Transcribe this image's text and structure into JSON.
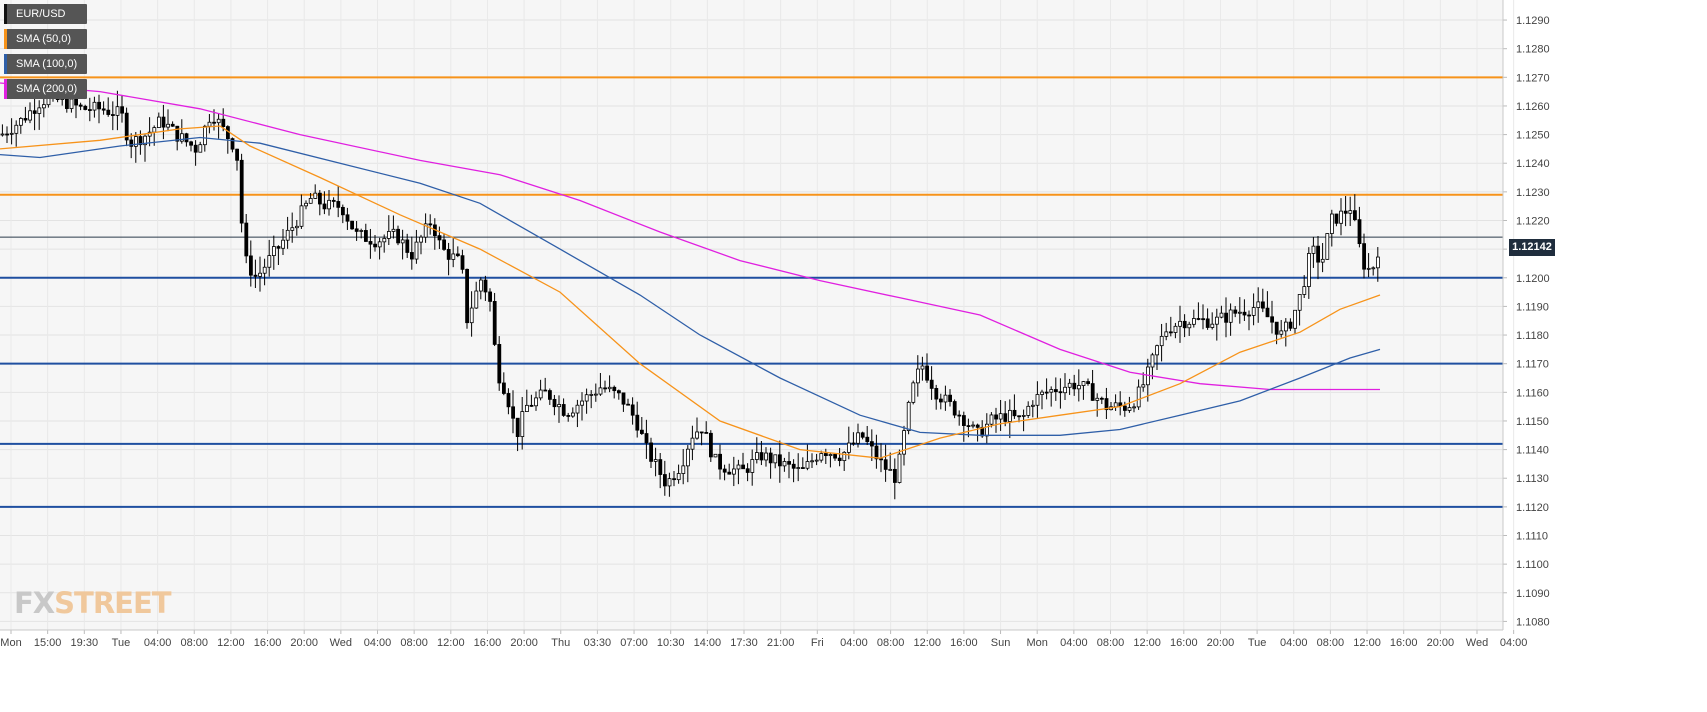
{
  "legend": [
    {
      "label": "EUR/USD",
      "color": "#111111"
    },
    {
      "label": "SMA (50,0)",
      "color": "#f7931a"
    },
    {
      "label": "SMA (100,0)",
      "color": "#2f5fa8"
    },
    {
      "label": "SMA (200,0)",
      "color": "#e020e0"
    }
  ],
  "logo": {
    "fx": "FX",
    "rest": "STREET"
  },
  "current_price": "1.12142",
  "chart_data": {
    "type": "candlestick",
    "symbol": "EUR/USD",
    "ylim": [
      1.1077,
      1.1297
    ],
    "yticks": [
      "1.1080",
      "1.1090",
      "1.1100",
      "1.1110",
      "1.1120",
      "1.1130",
      "1.1140",
      "1.1150",
      "1.1160",
      "1.1170",
      "1.1180",
      "1.1190",
      "1.1200",
      "1.1210",
      "1.1220",
      "1.1230",
      "1.1240",
      "1.1250",
      "1.1260",
      "1.1270",
      "1.1280",
      "1.1290"
    ],
    "xticks": [
      "Mon",
      "15:00",
      "19:30",
      "Tue",
      "04:00",
      "08:00",
      "12:00",
      "16:00",
      "20:00",
      "Wed",
      "04:00",
      "08:00",
      "12:00",
      "16:00",
      "20:00",
      "Thu",
      "03:30",
      "07:00",
      "10:30",
      "14:00",
      "17:30",
      "21:00",
      "Fri",
      "04:00",
      "08:00",
      "12:00",
      "16:00",
      "Sun",
      "Mon",
      "04:00",
      "08:00",
      "12:00",
      "16:00",
      "20:00",
      "Tue",
      "04:00",
      "08:00",
      "12:00",
      "16:00",
      "20:00",
      "Wed",
      "04:00"
    ],
    "horizontal_levels": [
      {
        "value": 1.127,
        "color": "#f7931a"
      },
      {
        "value": 1.1229,
        "color": "#f7931a"
      },
      {
        "value": 1.12,
        "color": "#1f4fa0"
      },
      {
        "value": 1.117,
        "color": "#1f4fa0"
      },
      {
        "value": 1.1142,
        "color": "#1f4fa0"
      },
      {
        "value": 1.112,
        "color": "#1f4fa0"
      }
    ],
    "current_price_level": 1.12142,
    "price_path": [
      [
        0,
        1.125
      ],
      [
        20,
        1.1255
      ],
      [
        40,
        1.1262
      ],
      [
        60,
        1.1262
      ],
      [
        80,
        1.1259
      ],
      [
        100,
        1.1259
      ],
      [
        120,
        1.1257
      ],
      [
        128,
        1.1247
      ],
      [
        145,
        1.125
      ],
      [
        160,
        1.1255
      ],
      [
        175,
        1.125
      ],
      [
        195,
        1.1245
      ],
      [
        210,
        1.1258
      ],
      [
        225,
        1.125
      ],
      [
        235,
        1.1245
      ],
      [
        240,
        1.122
      ],
      [
        245,
        1.1205
      ],
      [
        255,
        1.12
      ],
      [
        265,
        1.1205
      ],
      [
        280,
        1.1212
      ],
      [
        295,
        1.122
      ],
      [
        310,
        1.1228
      ],
      [
        325,
        1.1225
      ],
      [
        340,
        1.1225
      ],
      [
        355,
        1.1215
      ],
      [
        375,
        1.1213
      ],
      [
        395,
        1.1215
      ],
      [
        410,
        1.1208
      ],
      [
        430,
        1.122
      ],
      [
        440,
        1.121
      ],
      [
        460,
        1.1205
      ],
      [
        465,
        1.1185
      ],
      [
        480,
        1.12
      ],
      [
        490,
        1.119
      ],
      [
        495,
        1.1168
      ],
      [
        505,
        1.116
      ],
      [
        515,
        1.1145
      ],
      [
        525,
        1.1155
      ],
      [
        545,
        1.116
      ],
      [
        565,
        1.1153
      ],
      [
        580,
        1.1157
      ],
      [
        600,
        1.1162
      ],
      [
        620,
        1.1158
      ],
      [
        635,
        1.115
      ],
      [
        645,
        1.114
      ],
      [
        665,
        1.1128
      ],
      [
        680,
        1.1135
      ],
      [
        690,
        1.1145
      ],
      [
        700,
        1.1148
      ],
      [
        715,
        1.1135
      ],
      [
        740,
        1.1132
      ],
      [
        760,
        1.1138
      ],
      [
        780,
        1.1135
      ],
      [
        800,
        1.1132
      ],
      [
        820,
        1.114
      ],
      [
        840,
        1.1138
      ],
      [
        860,
        1.1145
      ],
      [
        880,
        1.1135
      ],
      [
        895,
        1.113
      ],
      [
        900,
        1.114
      ],
      [
        910,
        1.116
      ],
      [
        920,
        1.117
      ],
      [
        935,
        1.116
      ],
      [
        950,
        1.1155
      ],
      [
        965,
        1.115
      ],
      [
        975,
        1.1145
      ],
      [
        990,
        1.115
      ],
      [
        1005,
        1.1152
      ],
      [
        1020,
        1.115
      ],
      [
        1030,
        1.1157
      ],
      [
        1045,
        1.116
      ],
      [
        1060,
        1.1162
      ],
      [
        1075,
        1.1163
      ],
      [
        1090,
        1.116
      ],
      [
        1105,
        1.1155
      ],
      [
        1115,
        1.1155
      ],
      [
        1125,
        1.1155
      ],
      [
        1135,
        1.1158
      ],
      [
        1145,
        1.1165
      ],
      [
        1155,
        1.1175
      ],
      [
        1165,
        1.1182
      ],
      [
        1180,
        1.1185
      ],
      [
        1195,
        1.1185
      ],
      [
        1215,
        1.1185
      ],
      [
        1235,
        1.1188
      ],
      [
        1255,
        1.119
      ],
      [
        1270,
        1.1185
      ],
      [
        1280,
        1.118
      ],
      [
        1290,
        1.1185
      ],
      [
        1300,
        1.1195
      ],
      [
        1310,
        1.121
      ],
      [
        1320,
        1.1205
      ],
      [
        1330,
        1.122
      ],
      [
        1340,
        1.1222
      ],
      [
        1350,
        1.1225
      ],
      [
        1355,
        1.1215
      ],
      [
        1362,
        1.1205
      ],
      [
        1370,
        1.1202
      ],
      [
        1380,
        1.1214
      ]
    ],
    "sma50": [
      [
        0,
        1.1245
      ],
      [
        100,
        1.1248
      ],
      [
        180,
        1.1252
      ],
      [
        220,
        1.1253
      ],
      [
        250,
        1.1246
      ],
      [
        320,
        1.1235
      ],
      [
        400,
        1.1222
      ],
      [
        480,
        1.121
      ],
      [
        560,
        1.1195
      ],
      [
        640,
        1.117
      ],
      [
        720,
        1.115
      ],
      [
        800,
        1.114
      ],
      [
        880,
        1.1137
      ],
      [
        940,
        1.1144
      ],
      [
        1000,
        1.1149
      ],
      [
        1060,
        1.1152
      ],
      [
        1120,
        1.1155
      ],
      [
        1180,
        1.1163
      ],
      [
        1240,
        1.1174
      ],
      [
        1300,
        1.1181
      ],
      [
        1340,
        1.1189
      ],
      [
        1380,
        1.1194
      ]
    ],
    "sma100": [
      [
        0,
        1.1243
      ],
      [
        40,
        1.1242
      ],
      [
        120,
        1.1246
      ],
      [
        200,
        1.1249
      ],
      [
        260,
        1.1247
      ],
      [
        340,
        1.124
      ],
      [
        420,
        1.1233
      ],
      [
        480,
        1.1226
      ],
      [
        560,
        1.121
      ],
      [
        640,
        1.1194
      ],
      [
        700,
        1.118
      ],
      [
        780,
        1.1165
      ],
      [
        860,
        1.1152
      ],
      [
        920,
        1.1146
      ],
      [
        980,
        1.1145
      ],
      [
        1060,
        1.1145
      ],
      [
        1120,
        1.1147
      ],
      [
        1180,
        1.1152
      ],
      [
        1240,
        1.1157
      ],
      [
        1300,
        1.1165
      ],
      [
        1350,
        1.1172
      ],
      [
        1380,
        1.1175
      ]
    ],
    "sma200": [
      [
        0,
        1.1268
      ],
      [
        100,
        1.1265
      ],
      [
        200,
        1.1259
      ],
      [
        300,
        1.125
      ],
      [
        420,
        1.1241
      ],
      [
        500,
        1.1236
      ],
      [
        580,
        1.1227
      ],
      [
        660,
        1.1216
      ],
      [
        740,
        1.1206
      ],
      [
        820,
        1.1199
      ],
      [
        900,
        1.1193
      ],
      [
        980,
        1.1187
      ],
      [
        1060,
        1.1175
      ],
      [
        1130,
        1.1167
      ],
      [
        1200,
        1.1163
      ],
      [
        1270,
        1.1161
      ],
      [
        1320,
        1.1161
      ],
      [
        1380,
        1.1161
      ]
    ]
  }
}
